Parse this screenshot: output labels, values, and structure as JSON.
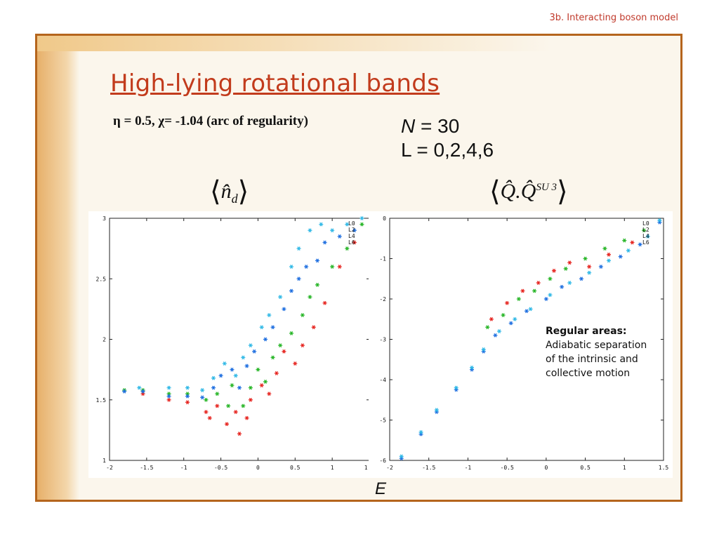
{
  "section_label": "3b. Interacting boson model",
  "title": "High-lying rotational bands",
  "params": "η = 0.5, χ= -1.04 (arc of regularity)",
  "n_label_symbol": "N",
  "n_label_value": " = 30",
  "l_label": "L = 0,2,4,6",
  "left_label": {
    "hat": "n̂",
    "sub": "d"
  },
  "right_label": {
    "q": "Q̂.Q̂",
    "sup": "SU 3"
  },
  "x_axis_label": "E",
  "annotation": {
    "head": "Regular areas:",
    "lines": [
      "Adiabatic separation",
      "of the intrinsic and",
      "collective motion"
    ]
  },
  "colors": {
    "L0": "#e6231e",
    "L2": "#26b526",
    "L4": "#1f6fe0",
    "L6": "#2fb8e6",
    "extra": "#9a9a9a",
    "frame": "#b5651d",
    "title": "#c23b1c"
  },
  "chart_data": [
    {
      "type": "scatter",
      "title": "⟨n̂d⟩",
      "xlabel": "",
      "ylabel": "",
      "xlim": [
        -2,
        1.5
      ],
      "ylim": [
        1,
        3
      ],
      "xticks": [
        "-2",
        "-1.5",
        "-1",
        "-0.5",
        "0",
        "0.5",
        "1",
        "1.5"
      ],
      "yticks": [
        "1",
        "1.5",
        "2",
        "2.5",
        "3"
      ],
      "legend": [
        "L0",
        "L2",
        "L4",
        "L6"
      ],
      "legend_position": "top-right",
      "series": [
        {
          "name": "L0",
          "points": [
            [
              -1.55,
              1.55
            ],
            [
              -1.2,
              1.5
            ],
            [
              -0.95,
              1.48
            ],
            [
              -0.7,
              1.4
            ],
            [
              -0.65,
              1.35
            ],
            [
              -0.55,
              1.45
            ],
            [
              -0.42,
              1.3
            ],
            [
              -0.3,
              1.4
            ],
            [
              -0.25,
              1.22
            ],
            [
              -0.15,
              1.35
            ],
            [
              -0.1,
              1.5
            ],
            [
              0.05,
              1.62
            ],
            [
              0.15,
              1.55
            ],
            [
              0.25,
              1.72
            ],
            [
              0.35,
              1.9
            ],
            [
              0.5,
              1.8
            ],
            [
              0.6,
              1.95
            ],
            [
              0.75,
              2.1
            ],
            [
              0.9,
              2.3
            ],
            [
              1.1,
              2.6
            ],
            [
              1.3,
              2.8
            ]
          ]
        },
        {
          "name": "L2",
          "points": [
            [
              -1.8,
              1.58
            ],
            [
              -1.55,
              1.58
            ],
            [
              -1.2,
              1.55
            ],
            [
              -0.95,
              1.55
            ],
            [
              -0.7,
              1.5
            ],
            [
              -0.55,
              1.55
            ],
            [
              -0.4,
              1.45
            ],
            [
              -0.35,
              1.62
            ],
            [
              -0.2,
              1.45
            ],
            [
              -0.1,
              1.6
            ],
            [
              0.0,
              1.75
            ],
            [
              0.1,
              1.65
            ],
            [
              0.2,
              1.85
            ],
            [
              0.3,
              1.95
            ],
            [
              0.45,
              2.05
            ],
            [
              0.6,
              2.2
            ],
            [
              0.7,
              2.35
            ],
            [
              0.8,
              2.45
            ],
            [
              1.0,
              2.6
            ],
            [
              1.2,
              2.75
            ],
            [
              1.4,
              2.95
            ]
          ]
        },
        {
          "name": "L4",
          "points": [
            [
              -1.8,
              1.57
            ],
            [
              -1.55,
              1.57
            ],
            [
              -1.2,
              1.53
            ],
            [
              -0.95,
              1.53
            ],
            [
              -0.75,
              1.52
            ],
            [
              -0.6,
              1.6
            ],
            [
              -0.5,
              1.7
            ],
            [
              -0.35,
              1.75
            ],
            [
              -0.25,
              1.6
            ],
            [
              -0.15,
              1.78
            ],
            [
              -0.05,
              1.9
            ],
            [
              0.1,
              2.0
            ],
            [
              0.2,
              2.1
            ],
            [
              0.35,
              2.25
            ],
            [
              0.45,
              2.4
            ],
            [
              0.55,
              2.5
            ],
            [
              0.65,
              2.6
            ],
            [
              0.8,
              2.65
            ],
            [
              0.9,
              2.8
            ],
            [
              1.1,
              2.85
            ],
            [
              1.3,
              2.9
            ]
          ]
        },
        {
          "name": "L6",
          "points": [
            [
              -1.6,
              1.6
            ],
            [
              -1.2,
              1.6
            ],
            [
              -0.95,
              1.6
            ],
            [
              -0.75,
              1.58
            ],
            [
              -0.6,
              1.68
            ],
            [
              -0.45,
              1.8
            ],
            [
              -0.3,
              1.7
            ],
            [
              -0.2,
              1.85
            ],
            [
              -0.1,
              1.95
            ],
            [
              0.05,
              2.1
            ],
            [
              0.15,
              2.2
            ],
            [
              0.3,
              2.35
            ],
            [
              0.45,
              2.6
            ],
            [
              0.55,
              2.75
            ],
            [
              0.7,
              2.9
            ],
            [
              0.85,
              2.95
            ],
            [
              1.0,
              2.9
            ],
            [
              1.2,
              2.95
            ],
            [
              1.4,
              3.0
            ]
          ]
        }
      ]
    },
    {
      "type": "scatter",
      "title": "⟨Q̂.Q̂SU 3⟩",
      "xlabel": "",
      "ylabel": "",
      "xlim": [
        -2,
        1.5
      ],
      "ylim": [
        -6,
        0
      ],
      "xticks": [
        "-2",
        "-1.5",
        "-1",
        "-0.5",
        "0",
        "0.5",
        "1",
        "1.5"
      ],
      "yticks": [
        "0",
        "-1",
        "-2",
        "-3",
        "-4",
        "-5",
        "-6"
      ],
      "legend": [
        "L0",
        "L2",
        "L4",
        "L6"
      ],
      "legend_position": "top-right",
      "series": [
        {
          "name": "L0",
          "points": [
            [
              -0.7,
              -2.5
            ],
            [
              -0.5,
              -2.1
            ],
            [
              -0.3,
              -1.8
            ],
            [
              -0.1,
              -1.6
            ],
            [
              0.1,
              -1.3
            ],
            [
              0.3,
              -1.1
            ],
            [
              0.55,
              -1.2
            ],
            [
              0.8,
              -0.9
            ],
            [
              1.1,
              -0.6
            ]
          ]
        },
        {
          "name": "L2",
          "points": [
            [
              -0.75,
              -2.7
            ],
            [
              -0.55,
              -2.4
            ],
            [
              -0.35,
              -2.0
            ],
            [
              -0.15,
              -1.8
            ],
            [
              0.05,
              -1.5
            ],
            [
              0.25,
              -1.25
            ],
            [
              0.5,
              -1.0
            ],
            [
              0.75,
              -0.75
            ],
            [
              1.0,
              -0.55
            ],
            [
              1.25,
              -0.3
            ]
          ]
        },
        {
          "name": "L4",
          "points": [
            [
              -1.85,
              -5.95
            ],
            [
              -1.6,
              -5.35
            ],
            [
              -1.4,
              -4.8
            ],
            [
              -1.15,
              -4.25
            ],
            [
              -0.95,
              -3.75
            ],
            [
              -0.8,
              -3.3
            ],
            [
              -0.65,
              -2.9
            ],
            [
              -0.45,
              -2.6
            ],
            [
              -0.25,
              -2.3
            ],
            [
              0.0,
              -2.0
            ],
            [
              0.2,
              -1.7
            ],
            [
              0.45,
              -1.5
            ],
            [
              0.7,
              -1.2
            ],
            [
              0.95,
              -0.95
            ],
            [
              1.2,
              -0.65
            ],
            [
              1.45,
              -0.1
            ]
          ]
        },
        {
          "name": "L6",
          "points": [
            [
              -1.85,
              -5.9
            ],
            [
              -1.6,
              -5.3
            ],
            [
              -1.4,
              -4.75
            ],
            [
              -1.15,
              -4.2
            ],
            [
              -0.95,
              -3.7
            ],
            [
              -0.8,
              -3.25
            ],
            [
              -0.6,
              -2.8
            ],
            [
              -0.4,
              -2.5
            ],
            [
              -0.2,
              -2.25
            ],
            [
              0.05,
              -1.9
            ],
            [
              0.3,
              -1.6
            ],
            [
              0.55,
              -1.35
            ],
            [
              0.8,
              -1.05
            ],
            [
              1.05,
              -0.8
            ],
            [
              1.3,
              -0.45
            ],
            [
              1.45,
              -0.05
            ]
          ]
        }
      ]
    }
  ]
}
